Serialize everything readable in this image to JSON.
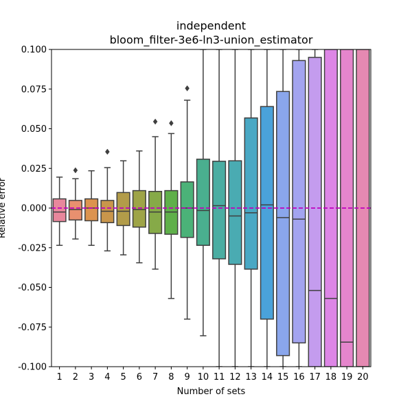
{
  "chart_data": {
    "type": "box",
    "title_lines": [
      "independent",
      "bloom_filter-3e6-ln3-union_estimator"
    ],
    "xlabel": "Number of sets",
    "ylabel": "Relative error",
    "ylim": [
      -0.1,
      0.1
    ],
    "yticks": [
      "-0.100",
      "-0.075",
      "-0.050",
      "-0.025",
      "0.000",
      "0.025",
      "0.050",
      "0.075",
      "0.100"
    ],
    "yticks_values": [
      -0.1,
      -0.075,
      -0.05,
      -0.025,
      0.0,
      0.025,
      0.05,
      0.075,
      0.1
    ],
    "reference_line": {
      "y": 0.0,
      "style": "dashed",
      "color": "#bf00bf"
    },
    "grid": false,
    "categories": [
      "1",
      "2",
      "3",
      "4",
      "5",
      "6",
      "7",
      "8",
      "9",
      "10",
      "11",
      "12",
      "13",
      "14",
      "15",
      "16",
      "17",
      "18",
      "19",
      "20"
    ],
    "boxes": [
      {
        "x": "1",
        "q1": -0.0085,
        "median": -0.0025,
        "q3": 0.0058,
        "whisker_low": -0.0235,
        "whisker_high": 0.0195,
        "outliers": [],
        "color": "#e8879c"
      },
      {
        "x": "2",
        "q1": -0.0075,
        "median": -0.001,
        "q3": 0.0048,
        "whisker_low": -0.0195,
        "whisker_high": 0.0185,
        "outliers": [
          0.0238
        ],
        "color": "#e8906f"
      },
      {
        "x": "3",
        "q1": -0.008,
        "median": 0.0,
        "q3": 0.0058,
        "whisker_low": -0.0235,
        "whisker_high": 0.0235,
        "outliers": [],
        "color": "#dc934f"
      },
      {
        "x": "4",
        "q1": -0.0092,
        "median": -0.002,
        "q3": 0.0048,
        "whisker_low": -0.027,
        "whisker_high": 0.0255,
        "outliers": [
          0.0355
        ],
        "color": "#c9964b"
      },
      {
        "x": "5",
        "q1": -0.011,
        "median": -0.002,
        "q3": 0.0098,
        "whisker_low": -0.0295,
        "whisker_high": 0.0298,
        "outliers": [],
        "color": "#b29c49"
      },
      {
        "x": "6",
        "q1": -0.012,
        "median": -0.001,
        "q3": 0.011,
        "whisker_low": -0.0345,
        "whisker_high": 0.036,
        "outliers": [],
        "color": "#9ea447"
      },
      {
        "x": "7",
        "q1": -0.016,
        "median": -0.0025,
        "q3": 0.0105,
        "whisker_low": -0.0385,
        "whisker_high": 0.045,
        "outliers": [
          0.0545
        ],
        "color": "#86aa48"
      },
      {
        "x": "8",
        "q1": -0.0165,
        "median": -0.0025,
        "q3": 0.011,
        "whisker_low": -0.057,
        "whisker_high": 0.047,
        "outliers": [
          0.0535
        ],
        "color": "#5fb04a"
      },
      {
        "x": "9",
        "q1": -0.0185,
        "median": 0.0,
        "q3": 0.0165,
        "whisker_low": -0.07,
        "whisker_high": 0.068,
        "outliers": [
          0.0755
        ],
        "color": "#4bb278"
      },
      {
        "x": "10",
        "q1": -0.0235,
        "median": -0.0015,
        "q3": 0.0308,
        "whisker_low": -0.0805,
        "whisker_high": 0.1,
        "outliers": [],
        "color": "#4aaf8f"
      },
      {
        "x": "11",
        "q1": -0.032,
        "median": 0.0015,
        "q3": 0.0295,
        "whisker_low": -0.1,
        "whisker_high": 0.1,
        "outliers": [],
        "color": "#4aada2"
      },
      {
        "x": "12",
        "q1": -0.0355,
        "median": -0.005,
        "q3": 0.0298,
        "whisker_low": -0.1,
        "whisker_high": 0.1,
        "outliers": [],
        "color": "#4aabb2"
      },
      {
        "x": "13",
        "q1": -0.0385,
        "median": -0.003,
        "q3": 0.0568,
        "whisker_low": -0.1,
        "whisker_high": 0.1,
        "outliers": [],
        "color": "#49a8c4"
      },
      {
        "x": "14",
        "q1": -0.07,
        "median": 0.002,
        "q3": 0.064,
        "whisker_low": -0.1,
        "whisker_high": 0.1,
        "outliers": [],
        "color": "#4aa2da"
      },
      {
        "x": "15",
        "q1": -0.093,
        "median": -0.006,
        "q3": 0.0735,
        "whisker_low": -0.1,
        "whisker_high": 0.1,
        "outliers": [],
        "color": "#8aa6ec"
      },
      {
        "x": "16",
        "q1": -0.085,
        "median": -0.007,
        "q3": 0.093,
        "whisker_low": -0.1,
        "whisker_high": 0.1,
        "outliers": [],
        "color": "#a3a4ef"
      },
      {
        "x": "17",
        "q1": -0.1,
        "median": -0.052,
        "q3": 0.095,
        "whisker_low": -0.1,
        "whisker_high": 0.1,
        "outliers": [],
        "color": "#c49cee"
      },
      {
        "x": "18",
        "q1": -0.1,
        "median": -0.057,
        "q3": 0.1,
        "whisker_low": -0.1,
        "whisker_high": 0.1,
        "outliers": [],
        "color": "#dd86e6"
      },
      {
        "x": "19",
        "q1": -0.1,
        "median": -0.0845,
        "q3": 0.1,
        "whisker_low": -0.1,
        "whisker_high": 0.1,
        "outliers": [],
        "color": "#e585cc"
      },
      {
        "x": "20",
        "q1": -0.1,
        "median": -0.1,
        "q3": 0.1,
        "whisker_low": -0.1,
        "whisker_high": 0.1,
        "outliers": [],
        "color": "#e589b2"
      }
    ]
  }
}
